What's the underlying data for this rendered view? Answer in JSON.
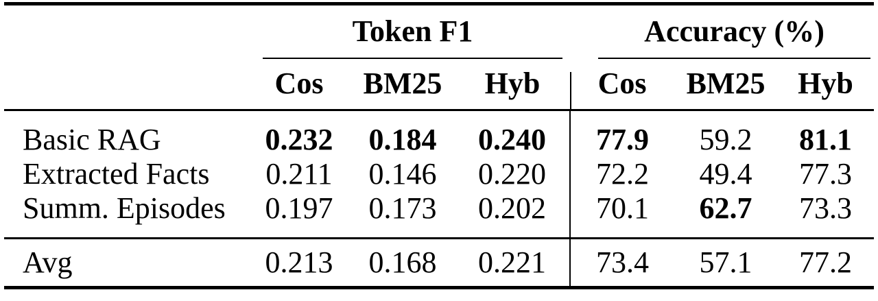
{
  "colors": {
    "background": "#ffffff",
    "text": "#000000",
    "rule": "#000000"
  },
  "table": {
    "group_headers": [
      {
        "label": "Token F1"
      },
      {
        "label": "Accuracy (%)"
      }
    ],
    "sub_headers": {
      "token_f1": {
        "cos": "Cos",
        "bm25": "BM25",
        "hyb": "Hyb"
      },
      "accuracy": {
        "cos": "Cos",
        "bm25": "BM25",
        "hyb": "Hyb"
      }
    },
    "rows": [
      {
        "label": "Basic RAG",
        "token_f1": {
          "cos": {
            "value": "0.232",
            "bold": true
          },
          "bm25": {
            "value": "0.184",
            "bold": true
          },
          "hyb": {
            "value": "0.240",
            "bold": true
          }
        },
        "accuracy": {
          "cos": {
            "value": "77.9",
            "bold": true
          },
          "bm25": {
            "value": "59.2",
            "bold": false
          },
          "hyb": {
            "value": "81.1",
            "bold": true
          }
        }
      },
      {
        "label": "Extracted Facts",
        "token_f1": {
          "cos": {
            "value": "0.211",
            "bold": false
          },
          "bm25": {
            "value": "0.146",
            "bold": false
          },
          "hyb": {
            "value": "0.220",
            "bold": false
          }
        },
        "accuracy": {
          "cos": {
            "value": "72.2",
            "bold": false
          },
          "bm25": {
            "value": "49.4",
            "bold": false
          },
          "hyb": {
            "value": "77.3",
            "bold": false
          }
        }
      },
      {
        "label": "Summ. Episodes",
        "token_f1": {
          "cos": {
            "value": "0.197",
            "bold": false
          },
          "bm25": {
            "value": "0.173",
            "bold": false
          },
          "hyb": {
            "value": "0.202",
            "bold": false
          }
        },
        "accuracy": {
          "cos": {
            "value": "70.1",
            "bold": false
          },
          "bm25": {
            "value": "62.7",
            "bold": true
          },
          "hyb": {
            "value": "73.3",
            "bold": false
          }
        }
      }
    ],
    "summary_row": {
      "label": "Avg",
      "token_f1": {
        "cos": {
          "value": "0.213",
          "bold": false
        },
        "bm25": {
          "value": "0.168",
          "bold": false
        },
        "hyb": {
          "value": "0.221",
          "bold": false
        }
      },
      "accuracy": {
        "cos": {
          "value": "73.4",
          "bold": false
        },
        "bm25": {
          "value": "57.1",
          "bold": false
        },
        "hyb": {
          "value": "77.2",
          "bold": false
        }
      }
    }
  }
}
